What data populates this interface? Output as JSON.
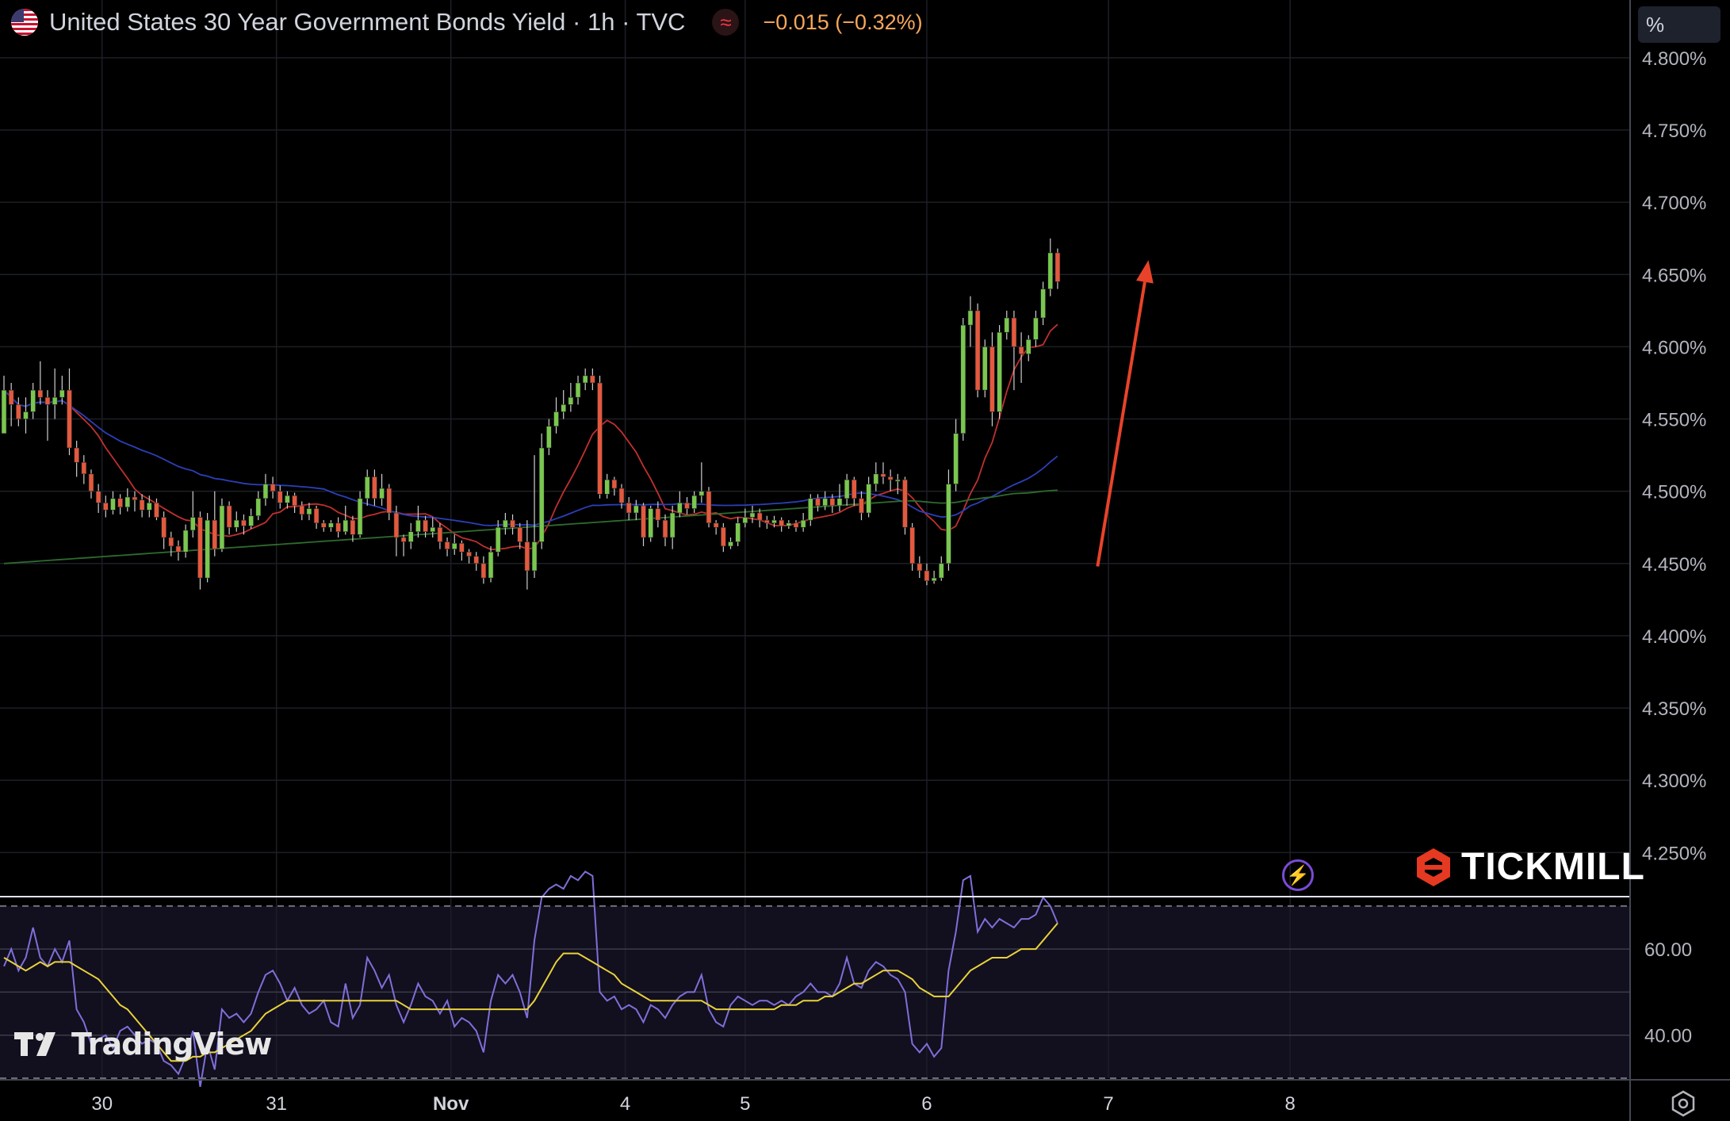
{
  "header": {
    "title": "United States 30 Year Government Bonds Yield · 1h · TVC",
    "change": "−0.015 (−0.32%)",
    "flag_icon": "us-flag-icon",
    "compare_icon": "approx-icon"
  },
  "price_axis": {
    "unit_label": "%"
  },
  "branding": {
    "broker": "TICKMILL",
    "platform": "TradingView"
  },
  "colors": {
    "up": "#7ac74f",
    "down": "#e3593e",
    "ma_fast": "#c0302f",
    "ma_mid": "#2b3fb8",
    "ma_slow": "#2e6b2e",
    "rsi": "#7e6fd8",
    "rsi_ma": "#e8d23a",
    "arrow": "#e8432a"
  },
  "chart_data": [
    {
      "type": "candlestick",
      "title": "United States 30 Year Government Bonds Yield · 1h · TVC",
      "ylim": [
        4.22,
        4.84
      ],
      "y_ticks": [
        "4.800%",
        "4.750%",
        "4.700%",
        "4.650%",
        "4.600%",
        "4.550%",
        "4.500%",
        "4.450%",
        "4.400%",
        "4.350%",
        "4.300%",
        "4.250%"
      ],
      "x_ticks": [
        {
          "label": "30",
          "i": 13.5
        },
        {
          "label": "31",
          "i": 37.5
        },
        {
          "label": "Nov",
          "i": 61.5
        },
        {
          "label": "4",
          "i": 85.5
        },
        {
          "label": "5",
          "i": 102
        },
        {
          "label": "6",
          "i": 127
        },
        {
          "label": "7",
          "i": 152
        },
        {
          "label": "8",
          "i": 177
        }
      ],
      "grid": true,
      "candles": [
        [
          4.54,
          4.57,
          4.58,
          4.54
        ],
        [
          4.57,
          4.56,
          4.575,
          4.545
        ],
        [
          4.56,
          4.55,
          4.565,
          4.545
        ],
        [
          4.55,
          4.555,
          4.565,
          4.54
        ],
        [
          4.555,
          4.57,
          4.575,
          4.55
        ],
        [
          4.57,
          4.565,
          4.59,
          4.56
        ],
        [
          4.565,
          4.56,
          4.57,
          4.535
        ],
        [
          4.56,
          4.565,
          4.585,
          4.55
        ],
        [
          4.565,
          4.57,
          4.58,
          4.56
        ],
        [
          4.57,
          4.53,
          4.585,
          4.525
        ],
        [
          4.53,
          4.52,
          4.535,
          4.51
        ],
        [
          4.52,
          4.512,
          4.525,
          4.505
        ],
        [
          4.512,
          4.5,
          4.515,
          4.495
        ],
        [
          4.5,
          4.492,
          4.505,
          4.485
        ],
        [
          4.492,
          4.487,
          4.497,
          4.482
        ],
        [
          4.487,
          4.495,
          4.5,
          4.484
        ],
        [
          4.495,
          4.489,
          4.498,
          4.484
        ],
        [
          4.489,
          4.496,
          4.502,
          4.486
        ],
        [
          4.496,
          4.494,
          4.5,
          4.486
        ],
        [
          4.494,
          4.487,
          4.498,
          4.482
        ],
        [
          4.487,
          4.492,
          4.497,
          4.482
        ],
        [
          4.492,
          4.482,
          4.495,
          4.48
        ],
        [
          4.482,
          4.468,
          4.486,
          4.46
        ],
        [
          4.468,
          4.462,
          4.472,
          4.455
        ],
        [
          4.462,
          4.458,
          4.466,
          4.452
        ],
        [
          4.458,
          4.473,
          4.477,
          4.454
        ],
        [
          4.473,
          4.482,
          4.5,
          4.468
        ],
        [
          4.482,
          4.44,
          4.486,
          4.432
        ],
        [
          4.44,
          4.48,
          4.485,
          4.437
        ],
        [
          4.48,
          4.46,
          4.5,
          4.455
        ],
        [
          4.46,
          4.49,
          4.495,
          4.458
        ],
        [
          4.49,
          4.475,
          4.493,
          4.47
        ],
        [
          4.475,
          4.48,
          4.486,
          4.472
        ],
        [
          4.48,
          4.476,
          4.484,
          4.47
        ],
        [
          4.476,
          4.483,
          4.488,
          4.474
        ],
        [
          4.483,
          4.495,
          4.5,
          4.48
        ],
        [
          4.495,
          4.505,
          4.512,
          4.49
        ],
        [
          4.505,
          4.5,
          4.51,
          4.495
        ],
        [
          4.5,
          4.492,
          4.504,
          4.488
        ],
        [
          4.492,
          4.497,
          4.5,
          4.488
        ],
        [
          4.497,
          4.49,
          4.499,
          4.485
        ],
        [
          4.49,
          4.484,
          4.493,
          4.48
        ],
        [
          4.484,
          4.488,
          4.492,
          4.48
        ],
        [
          4.488,
          4.478,
          4.49,
          4.474
        ],
        [
          4.478,
          4.475,
          4.48,
          4.472
        ],
        [
          4.475,
          4.478,
          4.48,
          4.472
        ],
        [
          4.478,
          4.472,
          4.482,
          4.468
        ],
        [
          4.472,
          4.48,
          4.49,
          4.47
        ],
        [
          4.48,
          4.47,
          4.483,
          4.465
        ],
        [
          4.47,
          4.495,
          4.5,
          4.468
        ],
        [
          4.495,
          4.51,
          4.515,
          4.49
        ],
        [
          4.51,
          4.495,
          4.515,
          4.49
        ],
        [
          4.495,
          4.502,
          4.512,
          4.49
        ],
        [
          4.502,
          4.485,
          4.505,
          4.48
        ],
        [
          4.485,
          4.468,
          4.49,
          4.455
        ],
        [
          4.468,
          4.465,
          4.47,
          4.455
        ],
        [
          4.465,
          4.472,
          4.478,
          4.46
        ],
        [
          4.472,
          4.48,
          4.49,
          4.468
        ],
        [
          4.48,
          4.472,
          4.483,
          4.468
        ],
        [
          4.472,
          4.475,
          4.482,
          4.468
        ],
        [
          4.475,
          4.465,
          4.478,
          4.46
        ],
        [
          4.465,
          4.46,
          4.468,
          4.455
        ],
        [
          4.46,
          4.464,
          4.47,
          4.456
        ],
        [
          4.464,
          4.458,
          4.466,
          4.452
        ],
        [
          4.458,
          4.455,
          4.46,
          4.45
        ],
        [
          4.455,
          4.45,
          4.458,
          4.445
        ],
        [
          4.45,
          4.44,
          4.455,
          4.436
        ],
        [
          4.44,
          4.458,
          4.462,
          4.437
        ],
        [
          4.458,
          4.475,
          4.48,
          4.455
        ],
        [
          4.475,
          4.48,
          4.485,
          4.47
        ],
        [
          4.48,
          4.475,
          4.484,
          4.47
        ],
        [
          4.475,
          4.465,
          4.478,
          4.46
        ],
        [
          4.465,
          4.445,
          4.48,
          4.432
        ],
        [
          4.445,
          4.465,
          4.525,
          4.44
        ],
        [
          4.465,
          4.53,
          4.54,
          4.46
        ],
        [
          4.53,
          4.545,
          4.55,
          4.525
        ],
        [
          4.545,
          4.555,
          4.565,
          4.54
        ],
        [
          4.555,
          4.56,
          4.57,
          4.55
        ],
        [
          4.56,
          4.565,
          4.575,
          4.555
        ],
        [
          4.565,
          4.575,
          4.58,
          4.56
        ],
        [
          4.575,
          4.58,
          4.585,
          4.57
        ],
        [
          4.58,
          4.575,
          4.585,
          4.57
        ],
        [
          4.575,
          4.498,
          4.58,
          4.495
        ],
        [
          4.498,
          4.508,
          4.512,
          4.495
        ],
        [
          4.508,
          4.502,
          4.51,
          4.497
        ],
        [
          4.502,
          4.492,
          4.505,
          4.488
        ],
        [
          4.492,
          4.485,
          4.496,
          4.48
        ],
        [
          4.485,
          4.49,
          4.494,
          4.48
        ],
        [
          4.49,
          4.468,
          4.492,
          4.462
        ],
        [
          4.468,
          4.488,
          4.49,
          4.465
        ],
        [
          4.488,
          4.48,
          4.493,
          4.475
        ],
        [
          4.48,
          4.468,
          4.484,
          4.462
        ],
        [
          4.468,
          4.485,
          4.49,
          4.46
        ],
        [
          4.485,
          4.492,
          4.5,
          4.482
        ],
        [
          4.492,
          4.488,
          4.496,
          4.484
        ],
        [
          4.488,
          4.497,
          4.5,
          4.485
        ],
        [
          4.497,
          4.5,
          4.52,
          4.492
        ],
        [
          4.5,
          4.478,
          4.503,
          4.475
        ],
        [
          4.478,
          4.475,
          4.48,
          4.47
        ],
        [
          4.475,
          4.462,
          4.478,
          4.458
        ],
        [
          4.462,
          4.465,
          4.468,
          4.46
        ],
        [
          4.465,
          4.478,
          4.482,
          4.462
        ],
        [
          4.478,
          4.482,
          4.488,
          4.475
        ],
        [
          4.482,
          4.485,
          4.49,
          4.478
        ],
        [
          4.485,
          4.48,
          4.488,
          4.475
        ],
        [
          4.48,
          4.478,
          4.483,
          4.474
        ],
        [
          4.478,
          4.48,
          4.483,
          4.475
        ],
        [
          4.48,
          4.476,
          4.482,
          4.472
        ],
        [
          4.476,
          4.478,
          4.48,
          4.474
        ],
        [
          4.478,
          4.475,
          4.48,
          4.472
        ],
        [
          4.475,
          4.48,
          4.485,
          4.472
        ],
        [
          4.48,
          4.495,
          4.498,
          4.476
        ],
        [
          4.495,
          4.49,
          4.498,
          4.486
        ],
        [
          4.49,
          4.495,
          4.5,
          4.487
        ],
        [
          4.495,
          4.49,
          4.498,
          4.485
        ],
        [
          4.49,
          4.495,
          4.505,
          4.486
        ],
        [
          4.495,
          4.508,
          4.512,
          4.49
        ],
        [
          4.508,
          4.495,
          4.51,
          4.49
        ],
        [
          4.495,
          4.485,
          4.5,
          4.48
        ],
        [
          4.485,
          4.505,
          4.51,
          4.482
        ],
        [
          4.505,
          4.512,
          4.52,
          4.5
        ],
        [
          4.512,
          4.51,
          4.52,
          4.505
        ],
        [
          4.51,
          4.508,
          4.515,
          4.5
        ],
        [
          4.508,
          4.508,
          4.512,
          4.498
        ],
        [
          4.508,
          4.475,
          4.51,
          4.47
        ],
        [
          4.475,
          4.45,
          4.478,
          4.445
        ],
        [
          4.45,
          4.445,
          4.455,
          4.44
        ],
        [
          4.445,
          4.438,
          4.45,
          4.435
        ],
        [
          4.438,
          4.44,
          4.445,
          4.436
        ],
        [
          4.44,
          4.45,
          4.455,
          4.438
        ],
        [
          4.45,
          4.505,
          4.515,
          4.445
        ],
        [
          4.505,
          4.54,
          4.55,
          4.5
        ],
        [
          4.54,
          4.615,
          4.62,
          4.535
        ],
        [
          4.615,
          4.625,
          4.635,
          4.6
        ],
        [
          4.625,
          4.57,
          4.63,
          4.565
        ],
        [
          4.57,
          4.6,
          4.605,
          4.565
        ],
        [
          4.6,
          4.555,
          4.61,
          4.545
        ],
        [
          4.555,
          4.61,
          4.615,
          4.55
        ],
        [
          4.61,
          4.62,
          4.625,
          4.605
        ],
        [
          4.62,
          4.6,
          4.625,
          4.57
        ],
        [
          4.6,
          4.595,
          4.61,
          4.575
        ],
        [
          4.595,
          4.605,
          4.608,
          4.59
        ],
        [
          4.605,
          4.62,
          4.625,
          4.6
        ],
        [
          4.62,
          4.64,
          4.645,
          4.615
        ],
        [
          4.64,
          4.665,
          4.675,
          4.635
        ],
        [
          4.665,
          4.645,
          4.668,
          4.64
        ]
      ],
      "annotation": {
        "type": "arrow",
        "from": [
          150.5,
          4.448
        ],
        "to": [
          157.5,
          4.66
        ]
      }
    },
    {
      "type": "line",
      "title": "RSI",
      "ylim": [
        30,
        72
      ],
      "y_ticks": [
        "60.00",
        "40.00"
      ],
      "bands": [
        70,
        60,
        50,
        40,
        30
      ],
      "series_rsi": [
        56,
        60,
        55,
        58,
        65,
        58,
        56,
        60,
        57,
        62,
        46,
        43,
        38,
        39,
        40,
        37,
        41,
        42,
        40,
        38,
        39,
        38,
        34,
        33,
        31,
        35,
        41,
        28,
        38,
        32,
        46,
        44,
        45,
        43,
        45,
        50,
        54,
        55,
        52,
        48,
        51,
        47,
        45,
        46,
        48,
        43,
        42,
        52,
        44,
        47,
        58,
        55,
        51,
        54,
        47,
        43,
        47,
        52,
        49,
        48,
        45,
        48,
        42,
        44,
        43,
        41,
        36,
        48,
        54,
        52,
        54,
        50,
        44,
        62,
        72,
        74,
        75,
        74,
        77,
        76,
        78,
        77,
        50,
        48,
        49,
        46,
        47,
        46,
        43,
        47,
        46,
        44,
        47,
        49,
        50,
        50,
        54,
        46,
        43,
        42,
        47,
        49,
        48,
        47,
        48,
        48,
        47,
        48,
        47,
        49,
        50,
        52,
        50,
        50,
        49,
        52,
        58,
        52,
        51,
        55,
        57,
        56,
        54,
        53,
        50,
        38,
        36,
        38,
        35,
        37,
        55,
        64,
        76,
        77,
        64,
        67,
        65,
        67,
        66,
        65,
        67,
        67,
        68,
        72,
        70,
        66
      ],
      "series_ma": [
        58,
        57,
        56,
        55,
        56,
        57,
        56,
        57,
        57,
        57,
        56,
        55,
        54,
        53,
        51,
        49,
        47,
        46,
        44,
        42,
        40,
        38,
        36,
        34,
        34,
        34,
        35,
        35,
        36,
        36,
        37,
        38,
        39,
        40,
        41,
        43,
        45,
        46,
        47,
        48,
        48,
        48,
        48,
        48,
        48,
        48,
        48,
        48,
        48,
        48,
        48,
        48,
        48,
        48,
        48,
        47,
        46,
        46,
        46,
        46,
        46,
        46,
        46,
        46,
        46,
        46,
        46,
        46,
        46,
        46,
        46,
        46,
        46,
        48,
        51,
        54,
        57,
        59,
        59,
        59,
        58,
        57,
        56,
        55,
        54,
        52,
        51,
        50,
        49,
        48,
        48,
        48,
        48,
        48,
        48,
        48,
        48,
        47,
        46,
        46,
        46,
        46,
        46,
        46,
        46,
        46,
        46,
        47,
        47,
        47,
        48,
        48,
        48,
        49,
        49,
        50,
        51,
        52,
        52,
        53,
        54,
        55,
        55,
        55,
        54,
        53,
        51,
        50,
        49,
        49,
        49,
        51,
        53,
        55,
        56,
        57,
        58,
        58,
        58,
        59,
        60,
        60,
        60,
        62,
        64,
        66
      ]
    }
  ]
}
